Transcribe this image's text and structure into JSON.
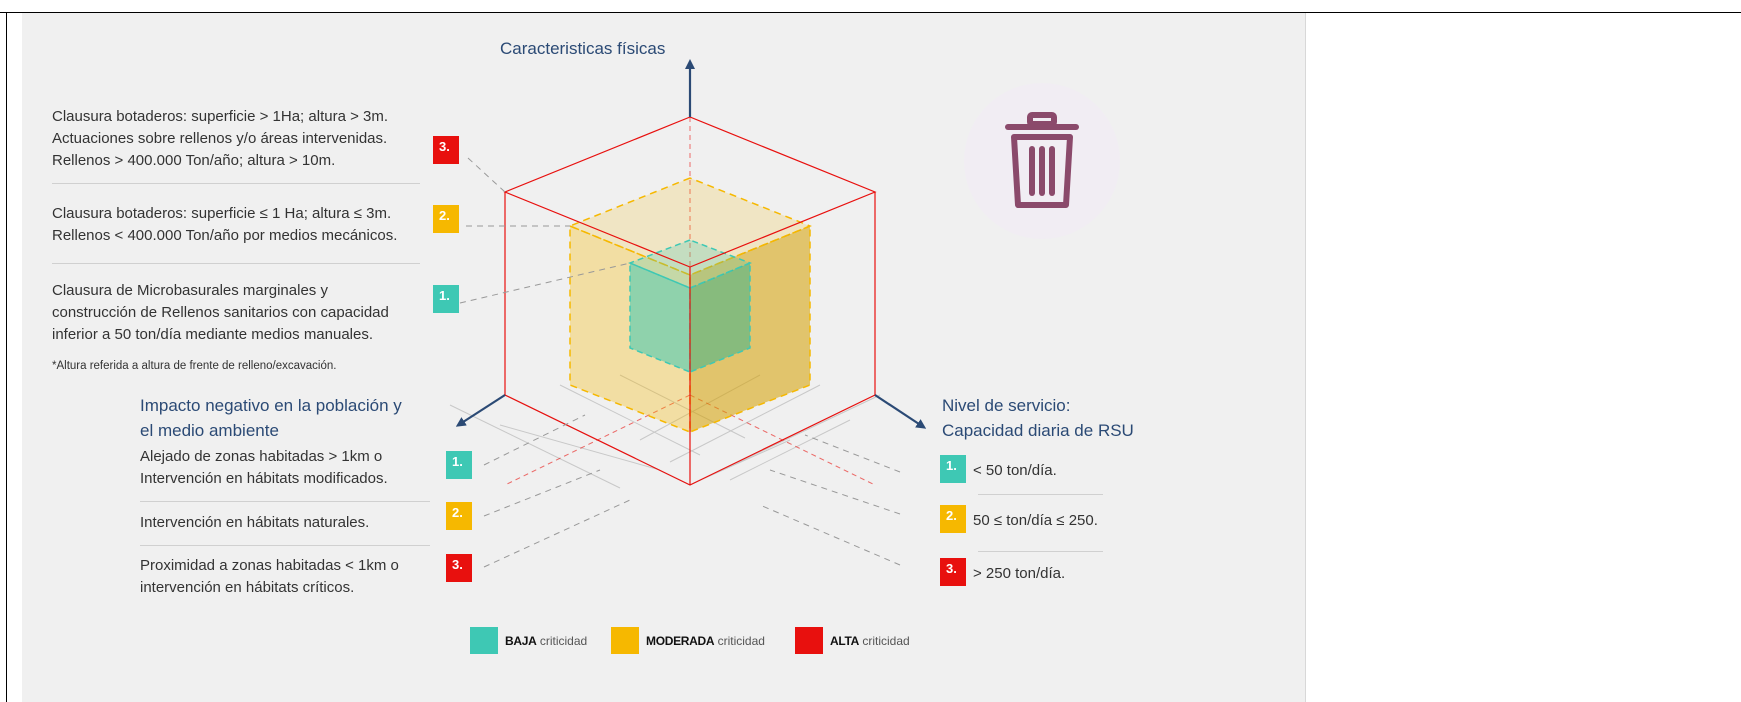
{
  "colors": {
    "low": "#3ec8b4",
    "moderate": "#f6b800",
    "high": "#e8100e",
    "heading": "#2b4a75",
    "trash_icon": "#8b4a6b"
  },
  "axes": {
    "vertical_title": "Caracteristicas físicas",
    "left_title_1": "Impacto negativo en la población y",
    "left_title_2": "el medio ambiente",
    "right_title_1": "Nivel de servicio:",
    "right_title_2": "Capacidad diaria de RSU"
  },
  "physical": {
    "level3": {
      "badge": "3.",
      "line1": "Clausura  botaderos: superficie > 1Ha; altura > 3m.",
      "line2": "Actuaciones sobre rellenos y/o áreas intervenidas.",
      "line3": "Rellenos > 400.000 Ton/año; altura > 10m."
    },
    "level2": {
      "badge": "2.",
      "line1": "Clausura botaderos: superficie ≤ 1 Ha; altura ≤ 3m.",
      "line2": "Rellenos < 400.000 Ton/año por medios mecánicos."
    },
    "level1": {
      "badge": "1.",
      "line1": "Clausura de Microbasurales marginales y",
      "line2": "construcción de Rellenos sanitarios con capacidad",
      "line3": "inferior a 50 ton/día mediante medios manuales."
    },
    "note": "*Altura referida a altura de frente de relleno/excavación."
  },
  "impact": {
    "level1": {
      "badge": "1.",
      "line1": "Alejado de zonas habitadas > 1km o",
      "line2": "Intervención en hábitats modificados."
    },
    "level2": {
      "badge": "2.",
      "line1": "Intervención en hábitats naturales."
    },
    "level3": {
      "badge": "3.",
      "line1": "Proximidad a zonas habitadas < 1km o",
      "line2": "intervención en hábitats críticos."
    }
  },
  "service": {
    "level1": {
      "badge": "1.",
      "text": "< 50 ton/día."
    },
    "level2": {
      "badge": "2.",
      "text": "50 ≤ ton/día ≤ 250."
    },
    "level3": {
      "badge": "3.",
      "text": "> 250 ton/día."
    }
  },
  "legend": [
    {
      "strong": "BAJA",
      "rest": " criticidad",
      "color_key": "low"
    },
    {
      "strong": "MODERADA",
      "rest": " criticidad",
      "color_key": "moderate"
    },
    {
      "strong": "ALTA",
      "rest": " criticidad",
      "color_key": "high"
    }
  ],
  "icon": "trash-can-icon"
}
